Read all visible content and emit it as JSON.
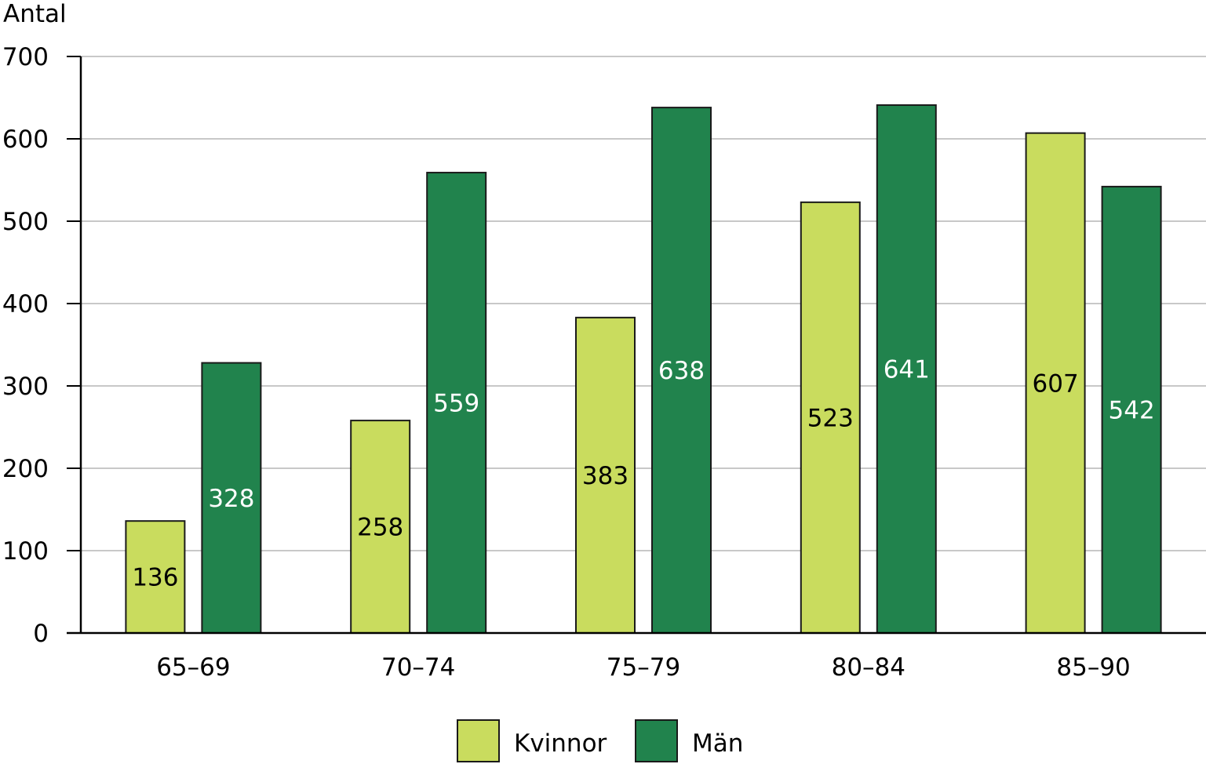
{
  "chart_data": {
    "type": "bar",
    "ylabel": "Antal",
    "xlabel": "",
    "ylim": [
      0,
      700
    ],
    "yticks": [
      0,
      100,
      200,
      300,
      400,
      500,
      600,
      700
    ],
    "categories": [
      "65–69",
      "70–74",
      "75–79",
      "80–84",
      "85–90"
    ],
    "series": [
      {
        "name": "Kvinnor",
        "values": [
          136,
          258,
          383,
          523,
          607
        ],
        "color": "#c9dc5e",
        "label_color": "#000000"
      },
      {
        "name": "Män",
        "values": [
          328,
          559,
          638,
          641,
          542
        ],
        "color": "#21834d",
        "label_color": "#ffffff"
      }
    ],
    "grid": true,
    "legend_position": "bottom-center"
  }
}
